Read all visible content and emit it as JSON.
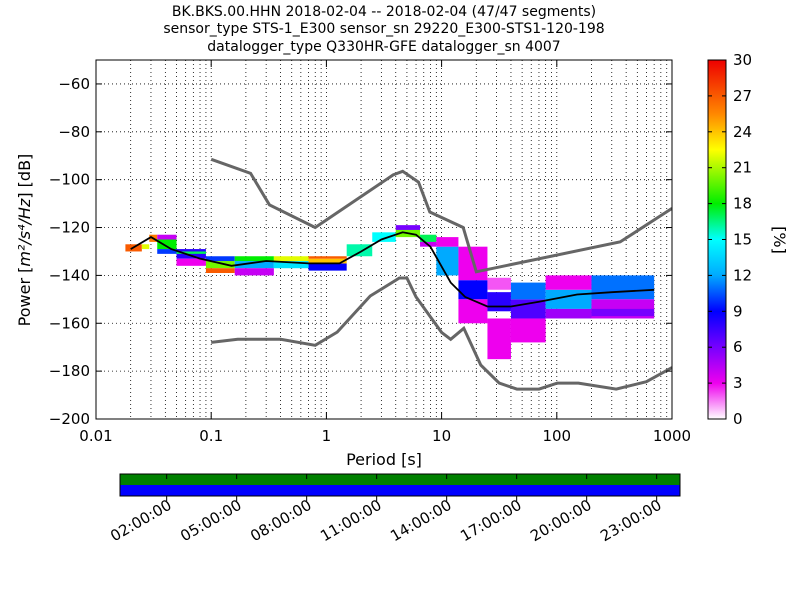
{
  "title_lines": [
    "BK.BKS.00.HHN   2018-02-04 -- 2018-02-04  (47/47 segments)",
    "sensor_type STS-1_E300 sensor_sn 29220_E300-STS1-120-198",
    "datalogger_type Q330HR-GFE datalogger_sn 4007"
  ],
  "chart_data": [
    {
      "type": "heatmap",
      "title": "BK.BKS.00.HHN   2018-02-04 -- 2018-02-04  (47/47 segments)",
      "xlabel": "Period [s]",
      "ylabel": "Power [m²/s⁴/Hz] [dB]",
      "ylabel_parts": {
        "main": "Power [",
        "unit": "m²/s⁴/Hz",
        "tail": "] [dB]"
      },
      "x_scale": "log",
      "xlim": [
        0.01,
        1000
      ],
      "ylim": [
        -200,
        -50
      ],
      "x_ticks": [
        0.01,
        0.1,
        1,
        10,
        100,
        1000
      ],
      "x_tick_labels": [
        "0.01",
        "0.1",
        "1",
        "10",
        "100",
        "1000"
      ],
      "y_ticks": [
        -60,
        -80,
        -100,
        -120,
        -140,
        -160,
        -180,
        -200
      ],
      "y_tick_labels": [
        "−60",
        "−80",
        "−100",
        "−120",
        "−140",
        "−160",
        "−180",
        "−200"
      ],
      "grid": "dotted",
      "colorbar": {
        "label": "[%]",
        "range": [
          0,
          30
        ],
        "ticks": [
          "0",
          "3",
          "6",
          "9",
          "12",
          "15",
          "18",
          "21",
          "24",
          "27",
          "30"
        ],
        "colormap": "pqlx"
      },
      "noise_models": {
        "color": "#666666",
        "high": [
          [
            0.1,
            -91.5
          ],
          [
            0.22,
            -97.4
          ],
          [
            0.32,
            -110.5
          ],
          [
            0.8,
            -120
          ],
          [
            3.8,
            -98
          ],
          [
            4.6,
            -96.5
          ],
          [
            6.3,
            -101
          ],
          [
            7.9,
            -113.5
          ],
          [
            15.4,
            -120
          ],
          [
            20,
            -138.5
          ],
          [
            354.8,
            -126
          ],
          [
            1000,
            -112
          ]
        ],
        "low": [
          [
            0.1,
            -168
          ],
          [
            0.17,
            -166.7
          ],
          [
            0.4,
            -166.7
          ],
          [
            0.8,
            -169.2
          ],
          [
            1.24,
            -163.7
          ],
          [
            2.4,
            -148.6
          ],
          [
            4.3,
            -141.1
          ],
          [
            5,
            -141.1
          ],
          [
            6,
            -149
          ],
          [
            10,
            -163.8
          ],
          [
            12,
            -166.7
          ],
          [
            15.6,
            -162.1
          ],
          [
            21.9,
            -177.5
          ],
          [
            31.6,
            -185
          ],
          [
            45,
            -187.5
          ],
          [
            70,
            -187.5
          ],
          [
            101,
            -185
          ],
          [
            154,
            -185
          ],
          [
            328,
            -187.5
          ],
          [
            600,
            -184.4
          ],
          [
            1000,
            -178.5
          ]
        ]
      },
      "density": [
        {
          "period": [
            0.018,
            0.025
          ],
          "db": [
            -130,
            -127
          ],
          "level": 27
        },
        {
          "period": [
            0.025,
            0.029
          ],
          "db": [
            -129,
            -127
          ],
          "level": 22
        },
        {
          "period": [
            0.029,
            0.034
          ],
          "db": [
            -126,
            -123
          ],
          "level": 26
        },
        {
          "period": [
            0.034,
            0.05
          ],
          "db": [
            -129,
            -125
          ],
          "level": 18
        },
        {
          "period": [
            0.034,
            0.05
          ],
          "db": [
            -131,
            -129
          ],
          "level": 10
        },
        {
          "period": [
            0.034,
            0.05
          ],
          "db": [
            -125,
            -123
          ],
          "level": 4
        },
        {
          "period": [
            0.05,
            0.09
          ],
          "db": [
            -133,
            -129
          ],
          "level": 8
        },
        {
          "period": [
            0.05,
            0.09
          ],
          "db": [
            -131,
            -130
          ],
          "level": 17
        },
        {
          "period": [
            0.05,
            0.09
          ],
          "db": [
            -136,
            -133
          ],
          "level": 3
        },
        {
          "period": [
            0.09,
            0.16
          ],
          "db": [
            -137,
            -134
          ],
          "level": 20
        },
        {
          "period": [
            0.09,
            0.16
          ],
          "db": [
            -134,
            -132
          ],
          "level": 10
        },
        {
          "period": [
            0.09,
            0.16
          ],
          "db": [
            -139,
            -137
          ],
          "level": 27
        },
        {
          "period": [
            0.16,
            0.35
          ],
          "db": [
            -137,
            -134
          ],
          "level": 12
        },
        {
          "period": [
            0.16,
            0.35
          ],
          "db": [
            -134,
            -132
          ],
          "level": 18
        },
        {
          "period": [
            0.16,
            0.35
          ],
          "db": [
            -140,
            -137
          ],
          "level": 4
        },
        {
          "period": [
            0.35,
            0.7
          ],
          "db": [
            -137,
            -134
          ],
          "level": 14
        },
        {
          "period": [
            0.35,
            0.7
          ],
          "db": [
            -134,
            -132
          ],
          "level": 22
        },
        {
          "period": [
            0.7,
            1.5
          ],
          "db": [
            -138,
            -135
          ],
          "level": 9
        },
        {
          "period": [
            0.7,
            1.5
          ],
          "db": [
            -135,
            -133
          ],
          "level": 24
        },
        {
          "period": [
            0.7,
            1.5
          ],
          "db": [
            -133,
            -132
          ],
          "level": 27
        },
        {
          "period": [
            1.5,
            2.5
          ],
          "db": [
            -132,
            -127
          ],
          "level": 16
        },
        {
          "period": [
            2.5,
            4
          ],
          "db": [
            -126,
            -122
          ],
          "level": 15
        },
        {
          "period": [
            4,
            6.5
          ],
          "db": [
            -124,
            -120
          ],
          "level": 20
        },
        {
          "period": [
            4,
            6.5
          ],
          "db": [
            -121,
            -119
          ],
          "level": 6
        },
        {
          "period": [
            6.5,
            9
          ],
          "db": [
            -127,
            -123
          ],
          "level": 17
        },
        {
          "period": [
            6.5,
            9
          ],
          "db": [
            -128,
            -126
          ],
          "level": 4
        },
        {
          "period": [
            9,
            14
          ],
          "db": [
            -140,
            -128
          ],
          "level": 12
        },
        {
          "period": [
            9,
            14
          ],
          "db": [
            -128,
            -124
          ],
          "level": 3
        },
        {
          "period": [
            14,
            25
          ],
          "db": [
            -150,
            -142
          ],
          "level": 9
        },
        {
          "period": [
            14,
            25
          ],
          "db": [
            -142,
            -128
          ],
          "level": 3
        },
        {
          "period": [
            14,
            25
          ],
          "db": [
            -160,
            -150
          ],
          "level": 3
        },
        {
          "period": [
            25,
            40
          ],
          "db": [
            -155,
            -147
          ],
          "level": 8
        },
        {
          "period": [
            25,
            40
          ],
          "db": [
            -175,
            -158
          ],
          "level": 3
        },
        {
          "period": [
            25,
            40
          ],
          "db": [
            -146,
            -141
          ],
          "level": 2
        },
        {
          "period": [
            40,
            80
          ],
          "db": [
            -158,
            -150
          ],
          "level": 7
        },
        {
          "period": [
            40,
            80
          ],
          "db": [
            -150,
            -143
          ],
          "level": 11
        },
        {
          "period": [
            40,
            80
          ],
          "db": [
            -168,
            -158
          ],
          "level": 3
        },
        {
          "period": [
            80,
            200
          ],
          "db": [
            -154,
            -146
          ],
          "level": 12
        },
        {
          "period": [
            80,
            200
          ],
          "db": [
            -158,
            -154
          ],
          "level": 5
        },
        {
          "period": [
            80,
            200
          ],
          "db": [
            -146,
            -140
          ],
          "level": 3
        },
        {
          "period": [
            200,
            700
          ],
          "db": [
            -150,
            -140
          ],
          "level": 11
        },
        {
          "period": [
            200,
            700
          ],
          "db": [
            -158,
            -150
          ],
          "level": 4
        },
        {
          "period": [
            200,
            700
          ],
          "db": [
            -157,
            -154
          ],
          "level": 6
        }
      ],
      "mode_line": [
        [
          0.02,
          -129
        ],
        [
          0.03,
          -124
        ],
        [
          0.045,
          -129
        ],
        [
          0.08,
          -133
        ],
        [
          0.15,
          -136
        ],
        [
          0.3,
          -134
        ],
        [
          0.7,
          -135
        ],
        [
          1.3,
          -135
        ],
        [
          2,
          -130
        ],
        [
          3,
          -125
        ],
        [
          4.6,
          -122
        ],
        [
          6,
          -123
        ],
        [
          8,
          -128
        ],
        [
          12,
          -143
        ],
        [
          16,
          -149
        ],
        [
          25,
          -153
        ],
        [
          40,
          -153
        ],
        [
          70,
          -151
        ],
        [
          150,
          -148
        ],
        [
          300,
          -147
        ],
        [
          700,
          -146
        ]
      ]
    },
    {
      "type": "timeline",
      "x_tick_labels": [
        "02:00:00",
        "05:00:00",
        "08:00:00",
        "11:00:00",
        "14:00:00",
        "17:00:00",
        "20:00:00",
        "23:00:00"
      ],
      "x_hours": [
        0,
        24
      ],
      "x_tick_hours": [
        2,
        5,
        8,
        11,
        14,
        17,
        20,
        23
      ],
      "rows": [
        {
          "color": "#008000",
          "segments": [
            [
              0,
              24
            ]
          ]
        },
        {
          "color": "#0000ff",
          "segments": [
            [
              0,
              24
            ]
          ]
        }
      ]
    }
  ]
}
